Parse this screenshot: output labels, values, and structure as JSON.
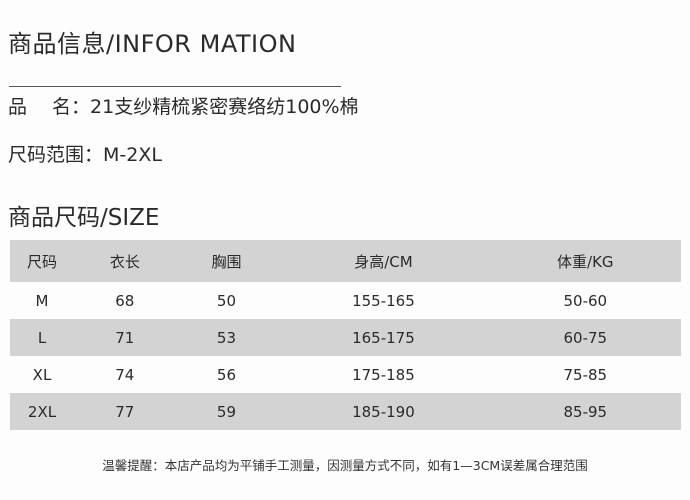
{
  "info": {
    "title": "商品信息/INFOR MATION",
    "name_label": "品　 名：",
    "name_value": "21支纱精梳紧密赛络纺100%棉",
    "size_range_label": "尺码范围：",
    "size_range_value": "M-2XL"
  },
  "size": {
    "title": "商品尺码/SIZE",
    "headers": [
      "尺码",
      "衣长",
      "胸围",
      "身高/CM",
      "体重/KG"
    ],
    "rows": [
      [
        "M",
        "68",
        "50",
        "155-165",
        "50-60"
      ],
      [
        "L",
        "71",
        "53",
        "165-175",
        "60-75"
      ],
      [
        "XL",
        "74",
        "56",
        "175-185",
        "75-85"
      ],
      [
        "2XL",
        "77",
        "59",
        "185-190",
        "85-95"
      ]
    ]
  },
  "note": "温馨提醒：本店产品均为平铺手工测量，因测量方式不同，如有1—3CM误差属合理范围",
  "colors": {
    "row_stripe": "#d3d3d3"
  }
}
